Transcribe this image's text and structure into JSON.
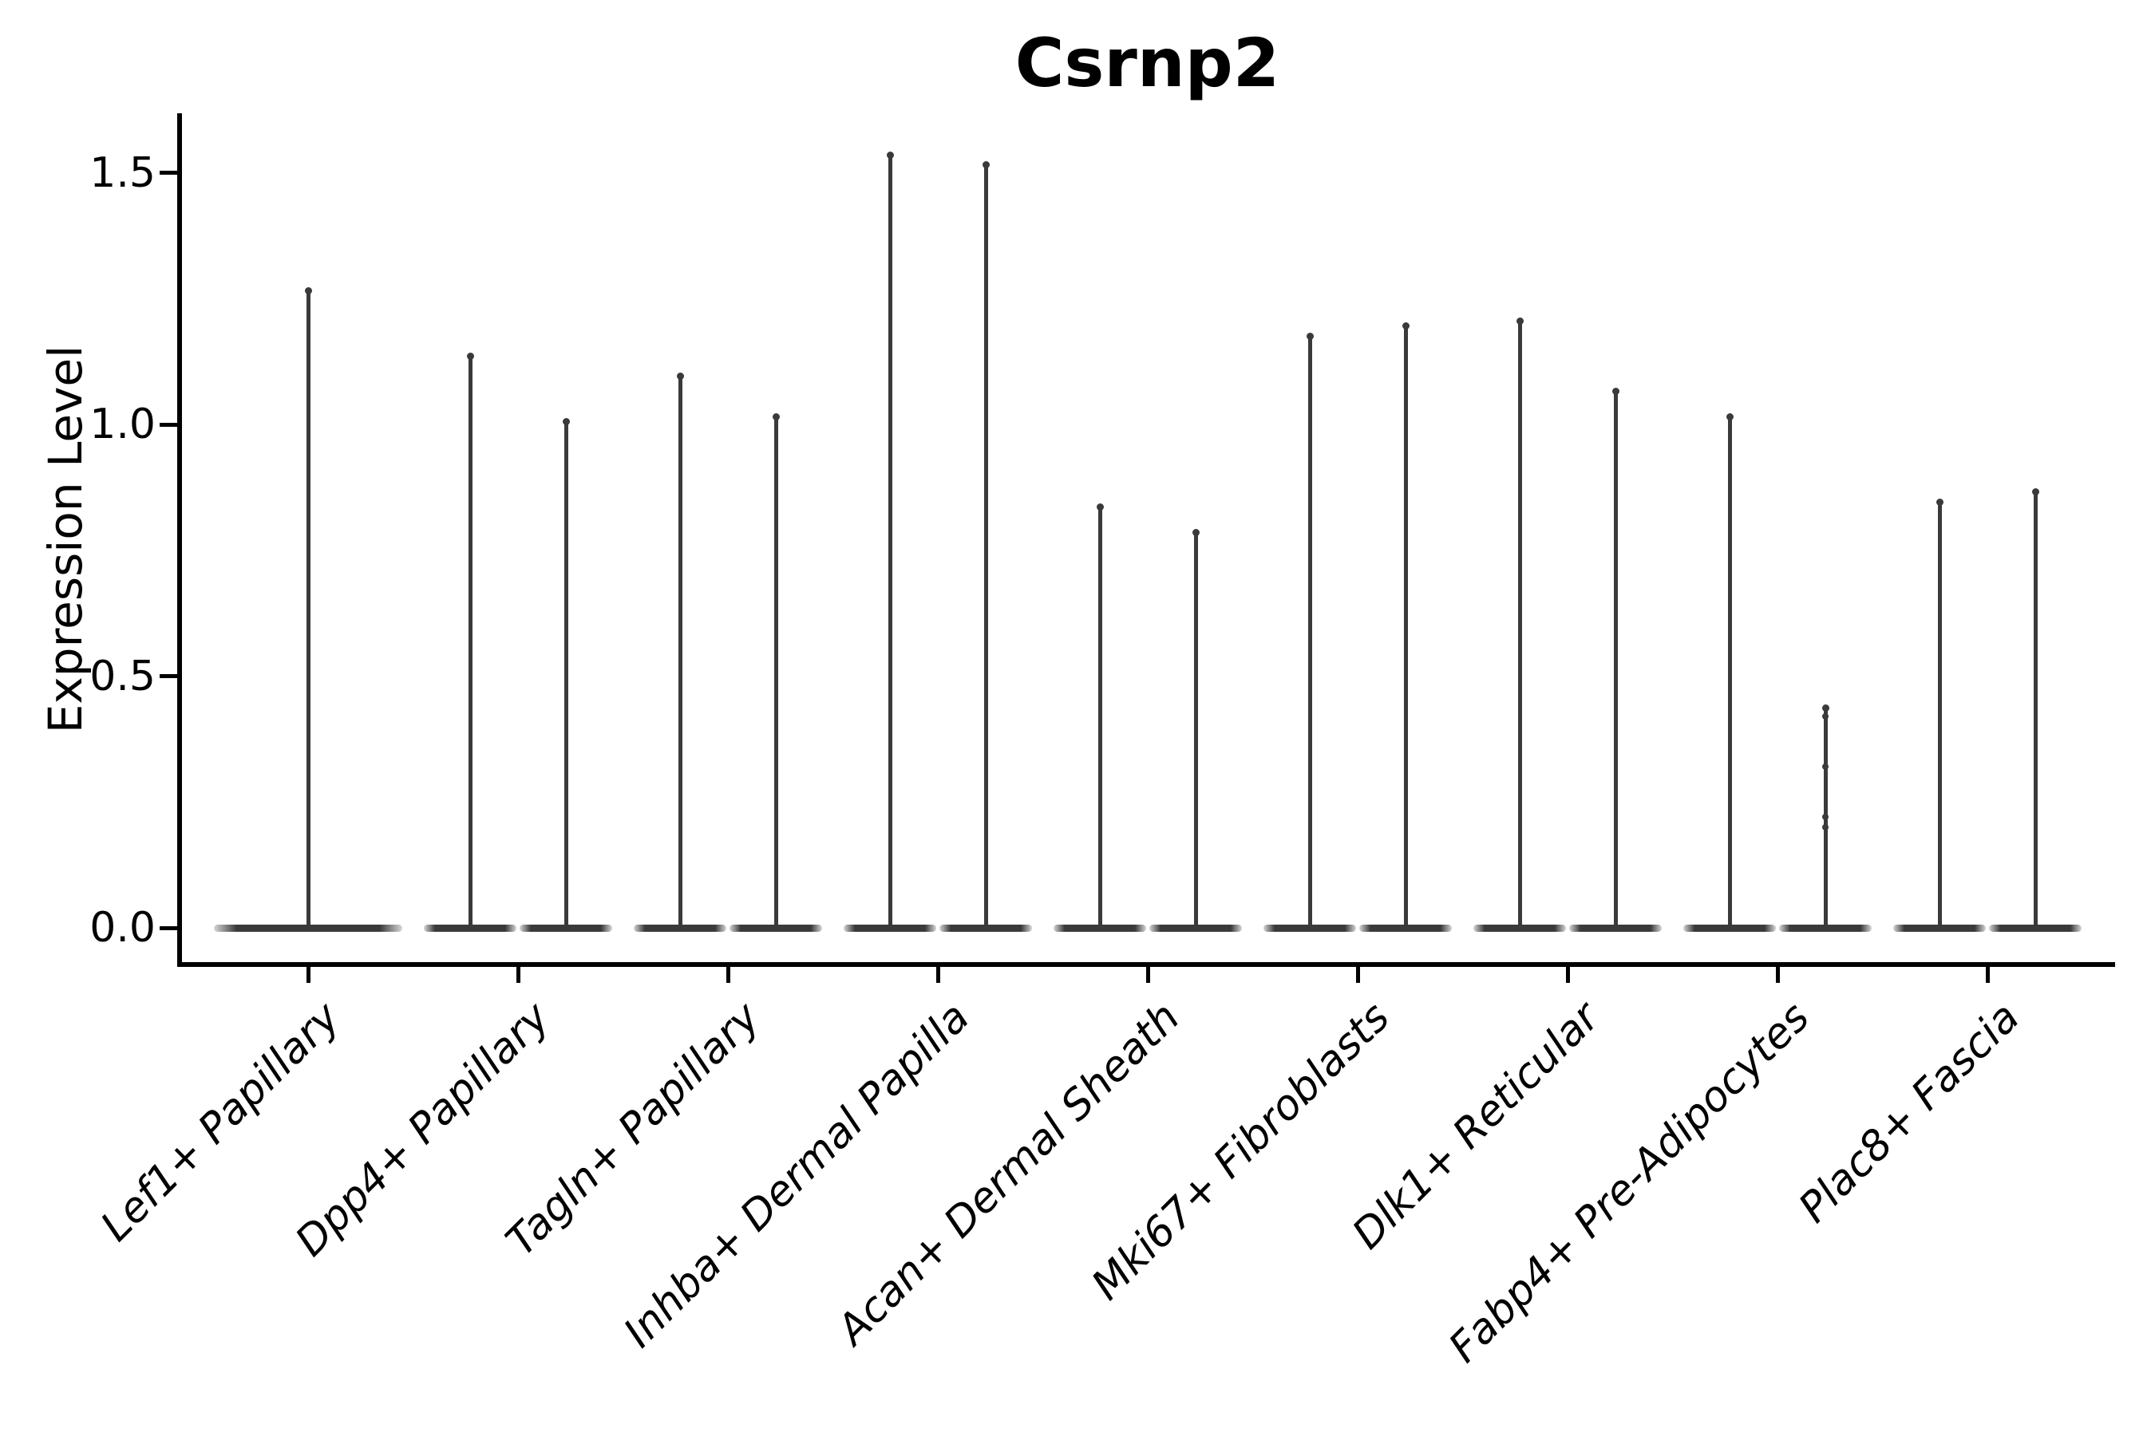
{
  "figure": {
    "title": "Csrnp2",
    "ylabel": "Expression Level"
  },
  "chart_data": {
    "type": "violin",
    "title": "Csrnp2",
    "xlabel": "",
    "ylabel": "Expression Level",
    "yticks": [
      "0.0",
      "0.5",
      "1.0",
      "1.5"
    ],
    "ylim": [
      0,
      1.66
    ],
    "grid": false,
    "legend": "none",
    "categories": [
      "Lef1+ Papillary",
      "Dpp4+ Papillary",
      "Tagln+ Papillary",
      "Inhba+ Dermal Papilla",
      "Acan+ Dermal Sheath",
      "Mki67+ Fibroblasts",
      "Dlk1+ Reticular",
      "Fabp4+ Pre-Adipocytes",
      "Plac8+ Fascia"
    ],
    "violins": [
      {
        "category": "Lef1+ Papillary",
        "split": false,
        "max_expression": [
          1.27
        ]
      },
      {
        "category": "Dpp4+ Papillary",
        "split": true,
        "max_expression": [
          1.14,
          1.01
        ]
      },
      {
        "category": "Tagln+ Papillary",
        "split": true,
        "max_expression": [
          1.1,
          1.02
        ]
      },
      {
        "category": "Inhba+ Dermal Papilla",
        "split": true,
        "max_expression": [
          1.54,
          1.52
        ]
      },
      {
        "category": "Acan+ Dermal Sheath",
        "split": true,
        "max_expression": [
          0.84,
          0.79
        ]
      },
      {
        "category": "Mki67+ Fibroblasts",
        "split": true,
        "max_expression": [
          1.18,
          1.2
        ]
      },
      {
        "category": "Dlk1+ Reticular",
        "split": true,
        "max_expression": [
          1.21,
          1.07
        ]
      },
      {
        "category": "Fabp4+ Pre-Adipocytes",
        "split": true,
        "max_expression": [
          1.02,
          0.44
        ],
        "point_values": [
          0.42,
          0.32,
          0.22,
          0.2
        ]
      },
      {
        "category": "Plac8+ Fascia",
        "split": true,
        "max_expression": [
          0.85,
          0.87
        ]
      }
    ],
    "colors": {
      "violin": "#3a3a3a",
      "axis": "#000000",
      "text": "#000000"
    }
  }
}
